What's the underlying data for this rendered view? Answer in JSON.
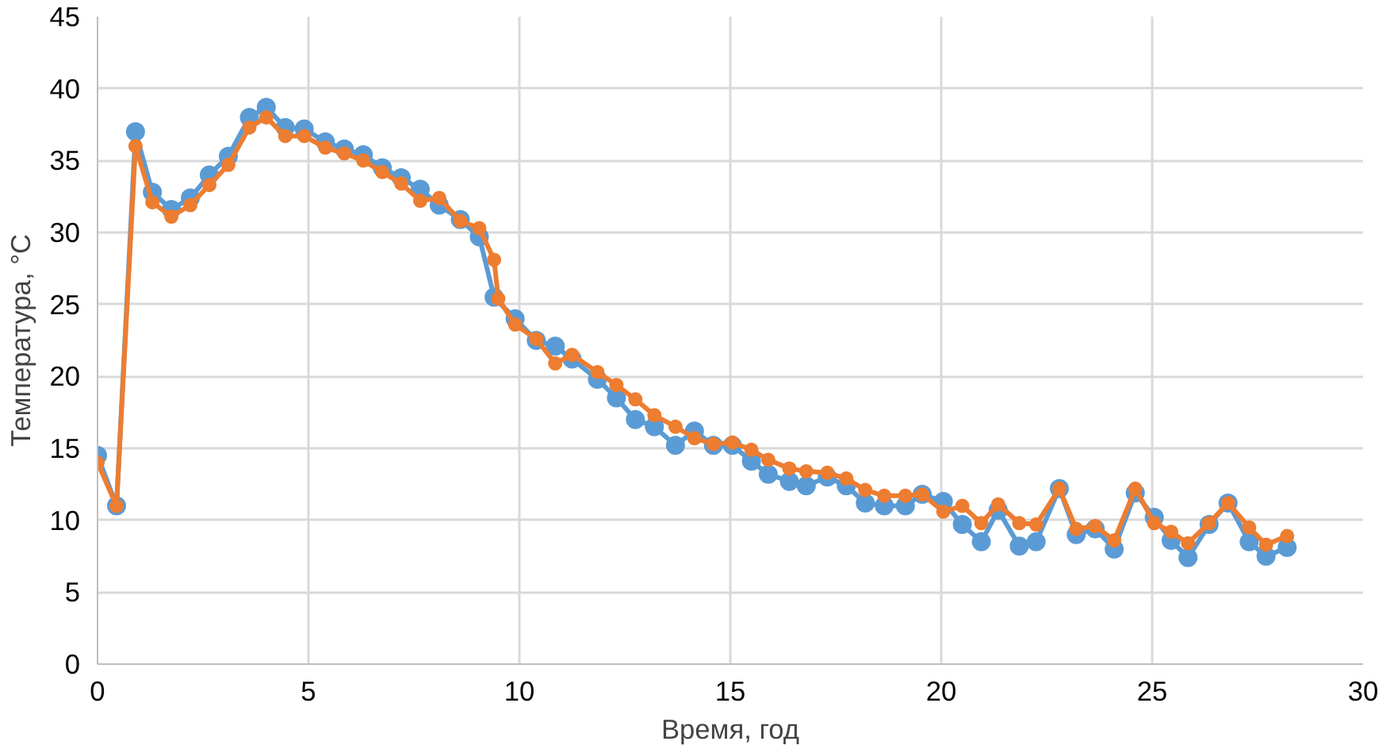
{
  "chart_data": {
    "type": "line",
    "xlabel": "Время, год",
    "ylabel": "Температура, °C",
    "xlim": [
      0,
      30
    ],
    "ylim": [
      0,
      45
    ],
    "xticks": [
      0,
      5,
      10,
      15,
      20,
      25,
      30
    ],
    "yticks": [
      0,
      5,
      10,
      15,
      20,
      25,
      30,
      35,
      40,
      45
    ],
    "grid": true,
    "marker": "circle",
    "line_style": "solid",
    "series": [
      {
        "color": "#5b9bd5",
        "x": [
          0,
          0.45,
          0.9,
          1.3,
          1.75,
          2.2,
          2.65,
          3.1,
          3.6,
          4.0,
          4.45,
          4.9,
          5.4,
          5.85,
          6.3,
          6.75,
          7.2,
          7.65,
          8.1,
          8.6,
          9.05,
          9.4,
          9.9,
          10.4,
          10.85,
          11.25,
          11.85,
          12.3,
          12.75,
          13.2,
          13.7,
          14.15,
          14.6,
          15.05,
          15.5,
          15.9,
          16.4,
          16.8,
          17.3,
          17.75,
          18.2,
          18.65,
          19.15,
          19.55,
          20.05,
          20.5,
          20.95,
          21.35,
          21.85,
          22.25,
          22.8,
          23.2,
          23.65,
          24.1,
          24.6,
          25.05,
          25.45,
          25.85,
          26.35,
          26.8,
          27.3,
          27.7,
          28.2
        ],
        "values": [
          14.5,
          11,
          37,
          32.8,
          31.6,
          32.4,
          34,
          35.3,
          38,
          38.7,
          37.3,
          37.2,
          36.3,
          35.8,
          35.4,
          34.5,
          33.8,
          33,
          31.9,
          30.9,
          29.7,
          25.5,
          24,
          22.5,
          22.1,
          21.2,
          19.8,
          18.5,
          17,
          16.5,
          15.2,
          16.2,
          15.2,
          15.2,
          14.1,
          13.2,
          12.7,
          12.4,
          13,
          12.4,
          11.2,
          11,
          11,
          11.8,
          11.3,
          9.7,
          8.5,
          10.7,
          8.2,
          8.5,
          12.2,
          9,
          9.4,
          8,
          11.9,
          10.2,
          8.6,
          7.4,
          9.7,
          11.2,
          8.5,
          7.5,
          8.1
        ]
      },
      {
        "color": "#ed7d31",
        "x": [
          0,
          0.45,
          0.9,
          1.3,
          1.75,
          2.2,
          2.65,
          3.1,
          3.6,
          4.0,
          4.45,
          4.9,
          5.4,
          5.85,
          6.3,
          6.75,
          7.2,
          7.65,
          8.1,
          8.6,
          9.05,
          9.4,
          9.5,
          9.9,
          10.4,
          10.85,
          11.25,
          11.85,
          12.3,
          12.75,
          13.2,
          13.7,
          14.15,
          14.6,
          15.05,
          15.5,
          15.9,
          16.4,
          16.8,
          17.3,
          17.75,
          18.2,
          18.65,
          19.15,
          19.55,
          20.05,
          20.5,
          20.95,
          21.35,
          21.85,
          22.25,
          22.8,
          23.2,
          23.65,
          24.1,
          24.6,
          25.05,
          25.45,
          25.85,
          26.35,
          26.8,
          27.3,
          27.7,
          28.2
        ],
        "values": [
          14,
          11,
          36,
          32.1,
          31.1,
          31.9,
          33.3,
          34.7,
          37.3,
          38,
          36.7,
          36.7,
          35.9,
          35.5,
          35,
          34.2,
          33.4,
          32.2,
          32.4,
          30.8,
          30.3,
          28.1,
          25.4,
          23.6,
          22.6,
          20.9,
          21.5,
          20.3,
          19.4,
          18.4,
          17.3,
          16.5,
          15.7,
          15.3,
          15.4,
          14.9,
          14.2,
          13.6,
          13.4,
          13.3,
          12.9,
          12.1,
          11.7,
          11.7,
          11.8,
          10.6,
          11,
          9.8,
          11.1,
          9.8,
          9.7,
          12.2,
          9.4,
          9.6,
          8.6,
          12.2,
          9.8,
          9.2,
          8.4,
          9.8,
          11.2,
          9.5,
          8.3,
          8.9
        ]
      }
    ]
  }
}
